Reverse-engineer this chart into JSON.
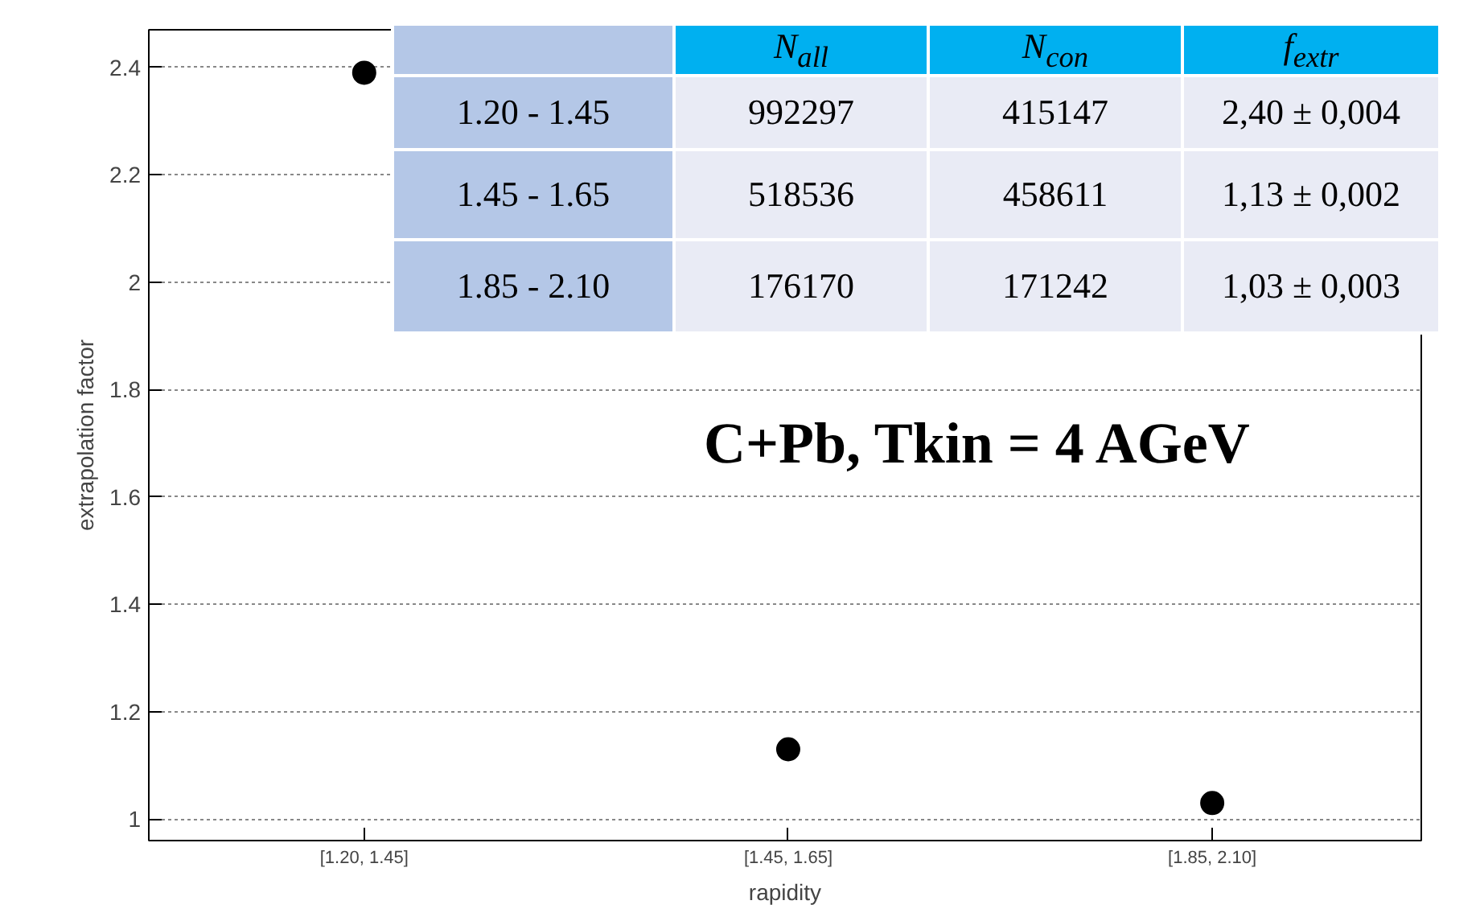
{
  "chart_data": [
    {
      "type": "scatter",
      "xlabel": "rapidity",
      "ylabel": "extrapolation factor",
      "categories": [
        "[1.20, 1.45]",
        "[1.45, 1.65]",
        "[1.85, 2.10]"
      ],
      "values": [
        2.39,
        1.13,
        1.03
      ],
      "color": "#000000",
      "marker": "circle",
      "ylim": [
        0.96,
        2.47
      ],
      "yticks": [
        1,
        1.2,
        1.4,
        1.6,
        1.8,
        2,
        2.2,
        2.4
      ],
      "grid": "y",
      "annotations": [
        "C+Pb, Tkin = 4 AGeV"
      ]
    },
    {
      "type": "other",
      "data_labels": true,
      "categories": [
        "1.20 - 1.45",
        "1.45 - 1.65",
        "1.85 - 2.10"
      ],
      "series": [
        {
          "name": "N$_{all}$",
          "values": [
            992297,
            518536,
            176170
          ]
        },
        {
          "name": "N$_{con}$",
          "values": [
            415147,
            458611,
            171242
          ]
        },
        {
          "name": "f$_{extr}$",
          "values": [
            2.4,
            1.13,
            1.03
          ],
          "value_labels": [
            "2,40 ± 0,004",
            "1,13 ± 0,002",
            "1,03 ± 0,003"
          ]
        }
      ]
    }
  ]
}
